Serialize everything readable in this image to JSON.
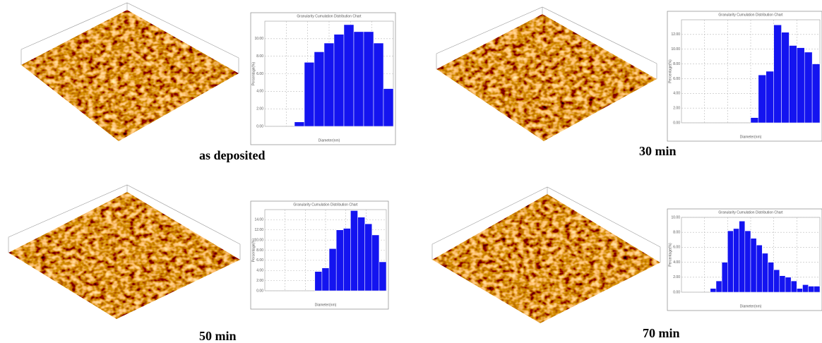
{
  "chart_data": [
    {
      "type": "bar",
      "title": "Granularity Cumulation Distribution Chart",
      "x_label": "Diameter(nm)",
      "y_label": "Percentage(%)",
      "caption": "as deposited",
      "color": "#1414f0",
      "categories": [
        null,
        null,
        null,
        null,
        null,
        null,
        null,
        null,
        null,
        null,
        null,
        null,
        null
      ],
      "values": [
        0,
        0,
        0,
        0.5,
        7.3,
        8.5,
        9.5,
        10.5,
        11.6,
        10.8,
        10.8,
        9.5,
        4.3
      ],
      "ylim": [
        0,
        12
      ],
      "yticks": [
        {
          "value": 0,
          "label": "0.00"
        },
        {
          "value": 2,
          "label": "2.00"
        },
        {
          "value": 4,
          "label": "4.00"
        },
        {
          "value": 6,
          "label": "6.00"
        },
        {
          "value": 8,
          "label": "8.00"
        },
        {
          "value": 10,
          "label": "10.00"
        }
      ],
      "grid": true
    },
    {
      "type": "bar",
      "title": "Granularity Cumulation Distribution Chart",
      "x_label": "Diameter(nm)",
      "y_label": "Percentage(%)",
      "caption": "30 min",
      "color": "#1414f0",
      "categories": [
        null,
        null,
        null,
        null,
        null,
        null,
        null,
        null,
        null,
        null,
        null,
        null,
        null,
        null,
        null,
        null,
        null,
        null
      ],
      "values": [
        0,
        0,
        0,
        0,
        0,
        0,
        0,
        0,
        0,
        0.7,
        6.5,
        7.0,
        13.3,
        12.3,
        10.5,
        10.2,
        9.6,
        8.0
      ],
      "ylim": [
        0,
        14
      ],
      "yticks": [
        {
          "value": 0,
          "label": "0.00"
        },
        {
          "value": 2,
          "label": "2.00"
        },
        {
          "value": 4,
          "label": "4.00"
        },
        {
          "value": 6,
          "label": "6.00"
        },
        {
          "value": 8,
          "label": "8.00"
        },
        {
          "value": 10,
          "label": "10.00"
        },
        {
          "value": 12,
          "label": "12.00"
        }
      ],
      "grid": true
    },
    {
      "type": "bar",
      "title": "Granularity Cumulation Distribution Chart",
      "x_label": "Diameter(nm)",
      "y_label": "Percentage(%)",
      "caption": "50 min",
      "color": "#1414f0",
      "categories": [
        null,
        null,
        null,
        null,
        null,
        null,
        null,
        null,
        null,
        null,
        null,
        null,
        null,
        null,
        null,
        null,
        null
      ],
      "values": [
        0,
        0,
        0,
        0,
        0,
        0,
        0,
        3.8,
        4.5,
        8.3,
        12.0,
        12.3,
        15.8,
        14.5,
        13.2,
        11.0,
        5.7
      ],
      "ylim": [
        0,
        16
      ],
      "yticks": [
        {
          "value": 0,
          "label": "0.00"
        },
        {
          "value": 2,
          "label": "2.00"
        },
        {
          "value": 4,
          "label": "4.00"
        },
        {
          "value": 6,
          "label": "6.00"
        },
        {
          "value": 8,
          "label": "8.00"
        },
        {
          "value": 10,
          "label": "10.00"
        },
        {
          "value": 12,
          "label": "12.00"
        },
        {
          "value": 14,
          "label": "14.00"
        }
      ],
      "grid": true
    },
    {
      "type": "bar",
      "title": "Granularity Cumulation Distribution Chart",
      "x_label": "Diameter(nm)",
      "y_label": "Percentage(%)",
      "caption": "70 min",
      "color": "#1414f0",
      "categories": [
        null,
        null,
        null,
        null,
        null,
        null,
        null,
        null,
        null,
        null,
        null,
        null,
        null,
        null,
        null,
        null,
        null,
        null,
        null,
        null,
        null,
        null,
        null,
        null
      ],
      "values": [
        0,
        0,
        0,
        0,
        0,
        0.5,
        1.5,
        4.0,
        8.2,
        8.5,
        9.5,
        8.2,
        7.2,
        6.3,
        5.2,
        4.0,
        3.0,
        2.2,
        2.0,
        1.5,
        0.5,
        1.0,
        0.8,
        0.8
      ],
      "ylim": [
        0,
        10
      ],
      "yticks": [
        {
          "value": 0,
          "label": "0.00"
        },
        {
          "value": 2,
          "label": "2.00"
        },
        {
          "value": 4,
          "label": "4.00"
        },
        {
          "value": 6,
          "label": "6.00"
        },
        {
          "value": 8,
          "label": "8.00"
        },
        {
          "value": 10,
          "label": "10.00"
        }
      ],
      "grid": true
    }
  ]
}
